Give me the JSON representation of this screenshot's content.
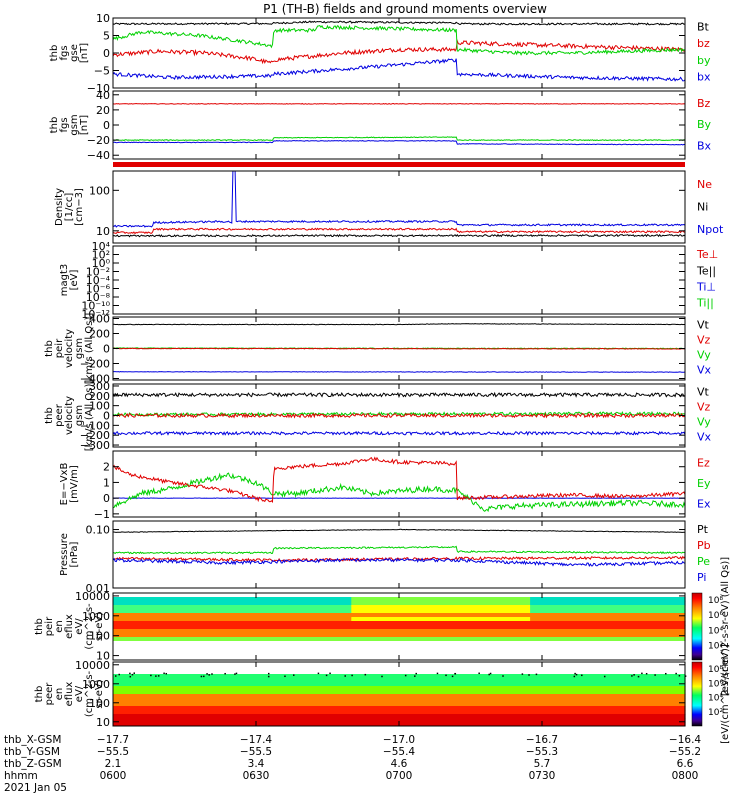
{
  "title": "P1 (TH-B) fields and ground moments overview",
  "colors": {
    "black": "#000000",
    "red": "#e00000",
    "green": "#00d000",
    "blue": "#0000e0"
  },
  "chart_data": [
    {
      "type": "line",
      "id": "fgs-gse",
      "ylabel": [
        "thb",
        "fgs",
        "gse",
        "[nT]"
      ],
      "ylim": [
        -10,
        10
      ],
      "yticks": [
        {
          "v": 10,
          "label": "10"
        },
        {
          "v": 5,
          "label": "5"
        },
        {
          "v": 0,
          "label": "0"
        },
        {
          "v": -5,
          "label": "−5"
        },
        {
          "v": -10,
          "label": "−10"
        }
      ],
      "legend": [
        {
          "label": "Bt",
          "color": "black"
        },
        {
          "label": "bz",
          "color": "red"
        },
        {
          "label": "by",
          "color": "green"
        },
        {
          "label": "bx",
          "color": "blue"
        }
      ],
      "series": [
        {
          "name": "Bt",
          "color": "black",
          "noise": 0.25,
          "x": [
            0,
            0.28,
            0.281,
            0.35,
            0.6,
            0.61,
            1
          ],
          "y": [
            8.3,
            8.4,
            8.5,
            8.9,
            8.6,
            8.3,
            8.3
          ]
        },
        {
          "name": "bz",
          "color": "red",
          "noise": 0.6,
          "x": [
            0,
            0.08,
            0.16,
            0.24,
            0.28,
            0.281,
            0.4,
            0.5,
            0.6,
            0.601,
            0.7,
            0.8,
            0.9,
            1
          ],
          "y": [
            -0.5,
            0.5,
            0,
            -1.5,
            -3,
            -2,
            0,
            1,
            1,
            3,
            2.5,
            2,
            1.5,
            1
          ]
        },
        {
          "name": "by",
          "color": "green",
          "noise": 0.5,
          "x": [
            0,
            0.05,
            0.15,
            0.22,
            0.28,
            0.281,
            0.35,
            0.36,
            0.6,
            0.601,
            0.7,
            0.8,
            1
          ],
          "y": [
            4,
            6,
            5,
            3.5,
            2,
            6.5,
            6.5,
            7.5,
            6.5,
            1,
            0,
            0,
            1
          ]
        },
        {
          "name": "bx",
          "color": "blue",
          "noise": 0.5,
          "x": [
            0,
            0.1,
            0.28,
            0.281,
            0.45,
            0.6,
            0.601,
            0.8,
            1
          ],
          "y": [
            -6,
            -7,
            -6.5,
            -6,
            -4,
            -2,
            -6,
            -7,
            -7.5
          ]
        }
      ]
    },
    {
      "type": "line",
      "id": "fgs-gsm",
      "ylabel": [
        "thb",
        "fgs",
        "gsm",
        "[nT]"
      ],
      "ylim": [
        -45,
        45
      ],
      "yticks": [
        {
          "v": 40,
          "label": "40"
        },
        {
          "v": 20,
          "label": "20"
        },
        {
          "v": 0,
          "label": "0"
        },
        {
          "v": -20,
          "label": "−20"
        },
        {
          "v": -40,
          "label": "−40"
        }
      ],
      "legend": [
        {
          "label": "Bz",
          "color": "red"
        },
        {
          "label": "By",
          "color": "green"
        },
        {
          "label": "Bx",
          "color": "blue"
        }
      ],
      "series": [
        {
          "name": "Bz",
          "color": "red",
          "noise": 0.4,
          "x": [
            0,
            1
          ],
          "y": [
            28,
            28
          ]
        },
        {
          "name": "By",
          "color": "green",
          "noise": 0.5,
          "x": [
            0,
            0.28,
            0.281,
            0.6,
            0.601,
            1
          ],
          "y": [
            -20,
            -20,
            -17,
            -16,
            -20,
            -20
          ]
        },
        {
          "name": "Bx",
          "color": "blue",
          "noise": 0.4,
          "x": [
            0,
            0.28,
            0.281,
            0.6,
            0.601,
            1
          ],
          "y": [
            -23,
            -23,
            -21,
            -21,
            -25,
            -26
          ]
        }
      ]
    },
    {
      "type": "line",
      "id": "density",
      "log": true,
      "ylabel": [
        "Density",
        "[1/cc]",
        "[cm−3]"
      ],
      "ylim": [
        5,
        300
      ],
      "yticks": [
        {
          "v": 100,
          "label": "100"
        },
        {
          "v": 10,
          "label": "10"
        }
      ],
      "legend": [
        {
          "label": "Ne",
          "color": "red"
        },
        {
          "label": "Ni",
          "color": "black"
        },
        {
          "label": "Npot",
          "color": "blue"
        }
      ],
      "series": [
        {
          "name": "Npot",
          "color": "blue",
          "noise": 0.05,
          "x": [
            0,
            0.07,
            0.071,
            0.2,
            0.208,
            0.209,
            0.214,
            0.215,
            0.6,
            0.601,
            1
          ],
          "y": [
            13,
            13,
            16,
            17,
            16,
            300,
            300,
            17,
            17,
            14,
            14
          ]
        },
        {
          "name": "Ne",
          "color": "red",
          "noise": 0.05,
          "x": [
            0,
            0.07,
            0.071,
            0.6,
            0.601,
            1
          ],
          "y": [
            9,
            9,
            11,
            11,
            9.5,
            9.5
          ]
        },
        {
          "name": "Ni",
          "color": "black",
          "noise": 0.05,
          "x": [
            0,
            1
          ],
          "y": [
            7.5,
            7.7
          ]
        }
      ]
    },
    {
      "type": "line",
      "id": "temp",
      "log": true,
      "ylabel": [
        "magt3",
        "[eV]"
      ],
      "ylim": [
        1e-12,
        10000.0
      ],
      "yticks": [
        {
          "v": 10000.0,
          "label": "10⁴"
        },
        {
          "v": 100.0,
          "label": "10²"
        },
        {
          "v": 1,
          "label": "10⁰"
        },
        {
          "v": 0.01,
          "label": "10⁻²"
        },
        {
          "v": 0.0001,
          "label": "10⁻⁴"
        },
        {
          "v": 1e-06,
          "label": "10⁻⁶"
        },
        {
          "v": 1e-08,
          "label": "10⁻⁸"
        },
        {
          "v": 1e-10,
          "label": "10⁻¹⁰"
        },
        {
          "v": 1e-12,
          "label": "10⁻¹²"
        }
      ],
      "legend": [
        {
          "label": "Te⊥",
          "color": "red"
        },
        {
          "label": "Te||",
          "color": "black"
        },
        {
          "label": "Ti⊥",
          "color": "blue"
        },
        {
          "label": "Ti||",
          "color": "green"
        }
      ],
      "series": []
    },
    {
      "type": "line",
      "id": "peir-vel",
      "ylabel": [
        "thb",
        "peir",
        "velocity",
        "gsm",
        "[km/s (All Qs)]"
      ],
      "ylim": [
        -420,
        420
      ],
      "yticks": [
        {
          "v": 400,
          "label": "400"
        },
        {
          "v": 200,
          "label": "200"
        },
        {
          "v": 0,
          "label": "0"
        },
        {
          "v": -200,
          "label": "−200"
        },
        {
          "v": -400,
          "label": "−400"
        }
      ],
      "legend": [
        {
          "label": "Vt",
          "color": "black"
        },
        {
          "label": "Vz",
          "color": "red"
        },
        {
          "label": "Vy",
          "color": "green"
        },
        {
          "label": "Vx",
          "color": "blue"
        }
      ],
      "series": [
        {
          "name": "Vt",
          "color": "black",
          "noise": 3,
          "x": [
            0,
            0.5,
            0.6,
            1
          ],
          "y": [
            320,
            320,
            330,
            320
          ]
        },
        {
          "name": "Vy",
          "color": "green",
          "noise": 4,
          "x": [
            0,
            1
          ],
          "y": [
            5,
            0
          ]
        },
        {
          "name": "Vz",
          "color": "red",
          "noise": 4,
          "x": [
            0,
            1
          ],
          "y": [
            0,
            -5
          ]
        },
        {
          "name": "Vx",
          "color": "blue",
          "noise": 3,
          "x": [
            0,
            1
          ],
          "y": [
            -310,
            -315
          ]
        }
      ]
    },
    {
      "type": "line",
      "id": "peer-vel",
      "ylabel": [
        "thb",
        "peer",
        "velocity",
        "gsm",
        "[km/s (All Qs)]"
      ],
      "ylim": [
        -320,
        320
      ],
      "yticks": [
        {
          "v": 300,
          "label": "300"
        },
        {
          "v": 200,
          "label": "200"
        },
        {
          "v": 100,
          "label": "100"
        },
        {
          "v": 0,
          "label": "0"
        },
        {
          "v": -100,
          "label": "−100"
        },
        {
          "v": -200,
          "label": "−200"
        },
        {
          "v": -300,
          "label": "−300"
        }
      ],
      "legend": [
        {
          "label": "Vt",
          "color": "black"
        },
        {
          "label": "Vz",
          "color": "red"
        },
        {
          "label": "Vy",
          "color": "green"
        },
        {
          "label": "Vx",
          "color": "blue"
        }
      ],
      "series": [
        {
          "name": "Vt",
          "color": "black",
          "noise": 18,
          "x": [
            0,
            1
          ],
          "y": [
            210,
            210
          ]
        },
        {
          "name": "Vy",
          "color": "green",
          "noise": 15,
          "x": [
            0,
            1
          ],
          "y": [
            10,
            20
          ]
        },
        {
          "name": "Vz",
          "color": "red",
          "noise": 18,
          "x": [
            0,
            1
          ],
          "y": [
            0,
            0
          ]
        },
        {
          "name": "Vx",
          "color": "blue",
          "noise": 15,
          "x": [
            0,
            1
          ],
          "y": [
            -180,
            -180
          ]
        }
      ]
    },
    {
      "type": "line",
      "id": "efield",
      "ylabel": [
        "E=−VxB",
        "[mV/m]"
      ],
      "ylim": [
        -1.2,
        3
      ],
      "yticks": [
        {
          "v": 2,
          "label": "2"
        },
        {
          "v": 1,
          "label": "1"
        },
        {
          "v": 0,
          "label": "0"
        },
        {
          "v": -1,
          "label": "−1"
        }
      ],
      "legend": [
        {
          "label": "Ez",
          "color": "red"
        },
        {
          "label": "Ey",
          "color": "green"
        },
        {
          "label": "Ex",
          "color": "blue"
        }
      ],
      "series": [
        {
          "name": "Ex",
          "color": "blue",
          "noise": 0.01,
          "x": [
            0,
            1
          ],
          "y": [
            0,
            0
          ]
        },
        {
          "name": "Ey",
          "color": "green",
          "noise": 0.18,
          "x": [
            0,
            0.05,
            0.1,
            0.2,
            0.25,
            0.28,
            0.32,
            0.4,
            0.45,
            0.55,
            0.6,
            0.65,
            0.7,
            0.8,
            0.9,
            1
          ],
          "y": [
            -0.5,
            0.3,
            0.6,
            1.5,
            1.0,
            0.3,
            0.3,
            0.7,
            0.3,
            0.6,
            0.5,
            -0.7,
            -0.5,
            -0.4,
            -0.3,
            -0.4
          ]
        },
        {
          "name": "Ez",
          "color": "red",
          "noise": 0.12,
          "x": [
            0,
            0.03,
            0.1,
            0.2,
            0.28,
            0.281,
            0.4,
            0.45,
            0.5,
            0.6,
            0.601,
            0.7,
            0.8,
            0.9,
            1
          ],
          "y": [
            2.0,
            1.5,
            1.0,
            0.5,
            -0.3,
            1.9,
            2.2,
            2.5,
            2.3,
            2.2,
            0,
            0.1,
            0.2,
            0.1,
            0.3
          ]
        }
      ]
    },
    {
      "type": "line",
      "id": "pressure",
      "log": true,
      "ylabel": [
        "Pressure",
        "[nPa]"
      ],
      "ylim": [
        0.01,
        0.14
      ],
      "yticks": [
        {
          "v": 0.1,
          "label": "0.10"
        },
        {
          "v": 0.01,
          "label": "0.01"
        }
      ],
      "legend": [
        {
          "label": "Pt",
          "color": "black"
        },
        {
          "label": "Pb",
          "color": "red"
        },
        {
          "label": "Pe",
          "color": "green"
        },
        {
          "label": "Pi",
          "color": "blue"
        }
      ],
      "series": [
        {
          "name": "Pt",
          "color": "black",
          "noise": 0.01,
          "x": [
            0,
            0.5,
            1
          ],
          "y": [
            0.09,
            0.1,
            0.09
          ]
        },
        {
          "name": "Pe",
          "color": "green",
          "noise": 0.03,
          "x": [
            0,
            0.28,
            0.281,
            0.6,
            0.601,
            1
          ],
          "y": [
            0.04,
            0.04,
            0.048,
            0.05,
            0.042,
            0.04
          ]
        },
        {
          "name": "Pb",
          "color": "red",
          "noise": 0.05,
          "x": [
            0,
            0.3,
            0.6,
            1
          ],
          "y": [
            0.032,
            0.03,
            0.032,
            0.033
          ]
        },
        {
          "name": "Pi",
          "color": "blue",
          "noise": 0.06,
          "x": [
            0,
            0.2,
            0.4,
            0.6,
            0.8,
            1
          ],
          "y": [
            0.03,
            0.027,
            0.03,
            0.03,
            0.025,
            0.027
          ]
        }
      ]
    },
    {
      "type": "heatmap",
      "id": "peir-eflux",
      "ylabel": [
        "thb",
        "peir",
        "en",
        "eflux",
        "eV/",
        "(cm^2-s-",
        "sr-eV)"
      ],
      "yticks": [
        {
          "v": 10000,
          "label": "10000"
        },
        {
          "v": 1000,
          "label": "1000"
        },
        {
          "v": 100,
          "label": "100"
        },
        {
          "v": 10,
          "label": "10"
        }
      ],
      "colorbar": [
        "10⁸",
        "10⁶",
        "10⁴",
        "10²"
      ],
      "colorbar_label": "[eV/(cm^2-s-sr-eV) (All Qs)]"
    },
    {
      "type": "heatmap",
      "id": "peer-eflux",
      "ylabel": [
        "thb",
        "peer",
        "en",
        "eflux",
        "eV/",
        "(cm^2-s-",
        "sr-eV)"
      ],
      "yticks": [
        {
          "v": 10000,
          "label": "10000"
        },
        {
          "v": 1000,
          "label": "1000"
        },
        {
          "v": 100,
          "label": "100"
        },
        {
          "v": 10,
          "label": "10"
        }
      ],
      "colorbar": [
        "10⁸",
        "10⁶",
        "10⁴",
        "10²"
      ],
      "colorbar_label": "[eV/(cm^2-s-sr-eV)]"
    }
  ],
  "xaxis": {
    "rows": [
      {
        "label": "thb_X-GSM",
        "values": [
          "−17.7",
          "−17.4",
          "−17.0",
          "−16.7",
          "−16.4"
        ]
      },
      {
        "label": "thb_Y-GSM",
        "values": [
          "−55.5",
          "−55.5",
          "−55.4",
          "−55.3",
          "−55.2"
        ]
      },
      {
        "label": "thb_Z-GSM",
        "values": [
          "2.1",
          "3.4",
          "4.6",
          "5.7",
          "6.6"
        ]
      },
      {
        "label": "hhmm",
        "values": [
          "0600",
          "0630",
          "0700",
          "0730",
          "0800"
        ]
      }
    ],
    "date": "2021 Jan 05"
  }
}
